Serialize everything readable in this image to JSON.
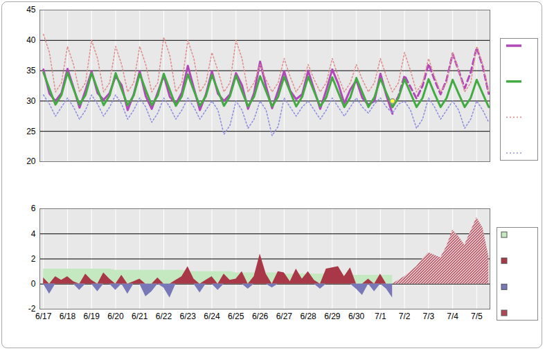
{
  "chart_data": [
    {
      "type": "line",
      "x": [
        0,
        0.25,
        0.5,
        0.75,
        1,
        1.25,
        1.5,
        1.75,
        2,
        2.25,
        2.5,
        2.75,
        3,
        3.25,
        3.5,
        3.75,
        4,
        4.25,
        4.5,
        4.75,
        5,
        5.25,
        5.5,
        5.75,
        6,
        6.25,
        6.5,
        6.75,
        7,
        7.25,
        7.5,
        7.75,
        8,
        8.25,
        8.5,
        8.75,
        9,
        9.25,
        9.5,
        9.75,
        10,
        10.25,
        10.5,
        10.75,
        11,
        11.25,
        11.5,
        11.75,
        12,
        12.25,
        12.5,
        12.75,
        13,
        13.25,
        13.5,
        13.75,
        14,
        14.25,
        14.5,
        14.75,
        15,
        15.25,
        15.5,
        15.75,
        16,
        16.25,
        16.5,
        16.75,
        17,
        17.25,
        17.5,
        17.75,
        18,
        18.25,
        18.5
      ],
      "xlim": [
        -0.15,
        18.55
      ],
      "xticks": [
        0,
        1,
        2,
        3,
        4,
        5,
        6,
        7,
        8,
        9,
        10,
        11,
        12,
        13,
        14,
        15,
        16,
        17,
        18
      ],
      "ylim": [
        20,
        45
      ],
      "yticks": [
        20,
        25,
        30,
        35,
        40,
        45
      ],
      "grid": true,
      "legend": "right",
      "tick_labels": "y",
      "series": [
        {
          "color": "#b048b8",
          "line_style": "solid",
          "values": [
            35.2,
            31.2,
            30.0,
            31.3,
            35.3,
            32.2,
            28.9,
            31.8,
            34.9,
            31.3,
            30.2,
            31.3,
            34.1,
            32.6,
            28.5,
            31.1,
            34.9,
            30.8,
            28.7,
            31.4,
            34.2,
            30.7,
            29.5,
            31.4,
            35.8,
            32.1,
            28.5,
            31.1,
            34.9,
            31.2,
            30.0,
            31.1,
            34.6,
            32.6,
            28.7,
            31.3,
            36.5,
            32.4,
            28.8,
            31.7,
            34.9,
            31.7,
            30.3,
            31.1,
            35.0,
            31.8,
            28.7,
            31.8,
            35.2,
            32.8,
            29.6,
            31.9,
            33.4,
            30.5,
            29.4,
            30.0,
            34.5,
            30.9,
            27.9,
            null,
            null,
            null,
            null,
            null,
            null,
            null,
            null,
            null,
            null,
            null,
            null,
            null,
            null,
            null,
            null
          ]
        },
        {
          "color": "#b048b8",
          "line_style": "dashed",
          "values": [
            null,
            null,
            null,
            null,
            null,
            null,
            null,
            null,
            null,
            null,
            null,
            null,
            null,
            null,
            null,
            null,
            null,
            null,
            null,
            null,
            null,
            null,
            null,
            null,
            null,
            null,
            null,
            null,
            null,
            null,
            null,
            null,
            null,
            null,
            null,
            null,
            null,
            null,
            null,
            null,
            null,
            null,
            null,
            null,
            null,
            null,
            null,
            null,
            null,
            null,
            null,
            null,
            null,
            null,
            null,
            null,
            null,
            null,
            29.0,
            30.8,
            34.2,
            32.3,
            30.4,
            32.5,
            36.1,
            33.5,
            31.1,
            33.5,
            37.8,
            35.0,
            32.1,
            34.7,
            38.8,
            35.7,
            31.2
          ]
        },
        {
          "color": "#44aa44",
          "line_style": "solid",
          "values": [
            34.7,
            32.0,
            29.4,
            31.0,
            34.7,
            32.0,
            29.4,
            31.0,
            34.6,
            31.9,
            29.3,
            30.9,
            34.6,
            31.9,
            29.3,
            30.9,
            34.5,
            31.8,
            29.3,
            30.9,
            34.5,
            31.8,
            29.2,
            30.8,
            34.4,
            31.7,
            29.2,
            30.8,
            34.3,
            31.7,
            29.2,
            30.8,
            34.2,
            31.6,
            29.1,
            30.7,
            34.1,
            31.6,
            29.1,
            30.7,
            34.0,
            31.5,
            29.1,
            30.7,
            34.0,
            31.5,
            29.1,
            30.6,
            33.9,
            31.4,
            29.0,
            30.6,
            33.8,
            31.4,
            29.0,
            30.6,
            33.7,
            31.3,
            29.0,
            30.5,
            33.6,
            31.3,
            29.0,
            30.5,
            33.6,
            31.2,
            29.0,
            30.5,
            33.5,
            31.2,
            29.0,
            30.5,
            33.5,
            31.2,
            29.0
          ]
        },
        {
          "color": "#e09090",
          "line_style": "dotted",
          "values": [
            41,
            38,
            31.5,
            33,
            39,
            36,
            31.5,
            33,
            40,
            37,
            31.5,
            33,
            39,
            36,
            31.5,
            33,
            39,
            36,
            31.5,
            33,
            40.5,
            37.5,
            31.5,
            33,
            40,
            37,
            31.5,
            33,
            38,
            35,
            31.5,
            33,
            40,
            37,
            31.5,
            33,
            36,
            33.5,
            31.5,
            33,
            37,
            34,
            31.5,
            33,
            36,
            33.5,
            31.5,
            33,
            37,
            34,
            31.5,
            33,
            36,
            33.5,
            31.5,
            33,
            37,
            34,
            31.5,
            33,
            38,
            35,
            31.5,
            33,
            37,
            34,
            31.5,
            33,
            38,
            35,
            31.5,
            33,
            39,
            36,
            31.5
          ]
        },
        {
          "color": "#9090e0",
          "line_style": "dotted",
          "values": [
            31,
            29.5,
            27.5,
            29,
            30.5,
            29,
            27,
            28.5,
            31,
            29.5,
            27.5,
            29,
            31,
            29.5,
            27,
            28.5,
            30.5,
            29,
            26.5,
            28,
            30.5,
            29,
            27,
            28.5,
            30.5,
            29,
            27,
            28.5,
            30,
            28.5,
            24.5,
            26,
            30,
            28.5,
            25.5,
            27,
            30,
            28.5,
            24.3,
            25.8,
            30.5,
            29,
            27.5,
            29,
            30,
            28.5,
            27,
            28.5,
            30.5,
            29,
            27.5,
            29,
            30.5,
            29,
            28,
            29.5,
            30.5,
            29,
            28,
            29.5,
            30,
            28.5,
            25.5,
            27,
            30.5,
            29,
            27,
            28.5,
            30,
            28.5,
            25.5,
            27,
            30,
            28.5,
            26.5
          ]
        },
        {
          "type": "scatter",
          "marker": "circle",
          "color": "#ffff33",
          "values": [
            null,
            null,
            null,
            null,
            null,
            null,
            null,
            null,
            null,
            null,
            null,
            null,
            null,
            null,
            null,
            null,
            null,
            null,
            null,
            null,
            null,
            null,
            null,
            null,
            null,
            null,
            null,
            null,
            null,
            null,
            null,
            null,
            null,
            null,
            null,
            null,
            null,
            null,
            null,
            null,
            null,
            null,
            null,
            null,
            null,
            null,
            null,
            null,
            null,
            null,
            null,
            null,
            null,
            null,
            null,
            null,
            null,
            null,
            30,
            null,
            null,
            null,
            null,
            null,
            null,
            null,
            null,
            null,
            null,
            null,
            null,
            null,
            null,
            null,
            null
          ]
        }
      ]
    },
    {
      "type": "area",
      "x": [
        0,
        0.25,
        0.5,
        0.75,
        1,
        1.25,
        1.5,
        1.75,
        2,
        2.25,
        2.5,
        2.75,
        3,
        3.25,
        3.5,
        3.75,
        4,
        4.25,
        4.5,
        4.75,
        5,
        5.25,
        5.5,
        5.75,
        6,
        6.25,
        6.5,
        6.75,
        7,
        7.25,
        7.5,
        7.75,
        8,
        8.25,
        8.5,
        8.75,
        9,
        9.25,
        9.5,
        9.75,
        10,
        10.25,
        10.5,
        10.75,
        11,
        11.25,
        11.5,
        11.75,
        12,
        12.25,
        12.5,
        12.75,
        13,
        13.25,
        13.5,
        13.75,
        14,
        14.25,
        14.5,
        14.75,
        15,
        15.25,
        15.5,
        15.75,
        16,
        16.25,
        16.5,
        16.75,
        17,
        17.25,
        17.5,
        17.75,
        18,
        18.25,
        18.5
      ],
      "xlim": [
        -0.15,
        18.55
      ],
      "xticks": [
        {
          "value": 0,
          "label": "6/17"
        },
        {
          "value": 1,
          "label": "6/18"
        },
        {
          "value": 2,
          "label": "6/19"
        },
        {
          "value": 3,
          "label": "6/20"
        },
        {
          "value": 4,
          "label": "6/21"
        },
        {
          "value": 5,
          "label": "6/22"
        },
        {
          "value": 6,
          "label": "6/23"
        },
        {
          "value": 7,
          "label": "6/24"
        },
        {
          "value": 8,
          "label": "6/25"
        },
        {
          "value": 9,
          "label": "6/26"
        },
        {
          "value": 10,
          "label": "6/27"
        },
        {
          "value": 11,
          "label": "6/28"
        },
        {
          "value": 12,
          "label": "6/29"
        },
        {
          "value": 13,
          "label": "6/30"
        },
        {
          "value": 14,
          "label": "7/1"
        },
        {
          "value": 15,
          "label": "7/2"
        },
        {
          "value": 16,
          "label": "7/3"
        },
        {
          "value": 17,
          "label": "7/4"
        },
        {
          "value": 18,
          "label": "7/5"
        }
      ],
      "ylim": [
        -2,
        6
      ],
      "yticks": [
        -2,
        0,
        2,
        4,
        6
      ],
      "grid": true,
      "legend": "right",
      "series": [
        {
          "color": "#c4e8c0",
          "values": [
            1.2,
            1.2,
            1.2,
            1.2,
            1.2,
            1.2,
            1.2,
            1.2,
            1.2,
            1.2,
            1.2,
            1.2,
            1.1,
            1.1,
            1.1,
            1.1,
            1.1,
            1.1,
            1.1,
            1.1,
            1.1,
            1.1,
            1.1,
            1.1,
            1.0,
            1.0,
            1.0,
            1.0,
            1.0,
            1.0,
            1.0,
            1.0,
            0.9,
            0.9,
            0.9,
            0.9,
            0.9,
            0.9,
            0.9,
            0.9,
            0.8,
            0.8,
            0.8,
            0.8,
            0.8,
            0.8,
            0.8,
            0.8,
            0.7,
            0.7,
            0.7,
            0.7,
            0.7,
            0.7,
            0.7,
            0.7,
            0.7,
            0.7,
            0.7,
            null,
            null,
            null,
            null,
            null,
            null,
            null,
            null,
            null,
            null,
            null,
            null,
            null,
            null,
            null,
            null
          ]
        },
        {
          "color": "#a83848",
          "values": [
            0.5,
            0,
            0.6,
            0.3,
            0.6,
            0.2,
            0,
            0.8,
            0.3,
            0,
            0.9,
            0.4,
            0,
            0.7,
            0,
            0.2,
            0.4,
            0,
            0,
            0.5,
            0,
            0,
            0.3,
            0.6,
            1.4,
            0.4,
            0,
            0.3,
            0.6,
            0,
            0.8,
            0.3,
            0.4,
            1.0,
            0,
            0.6,
            2.4,
            0.8,
            0,
            1.0,
            0.9,
            0.2,
            1.2,
            0.4,
            1.0,
            0.3,
            0,
            1.2,
            1.3,
            1.4,
            0.6,
            1.3,
            0,
            0,
            0.4,
            0,
            0.8,
            0,
            0,
            null,
            null,
            null,
            null,
            null,
            null,
            null,
            null,
            null,
            null,
            null,
            null,
            null,
            null,
            null,
            null
          ]
        },
        {
          "color": "#7878b8",
          "values": [
            0,
            -0.8,
            0,
            0,
            0,
            0,
            -0.5,
            0,
            0,
            -0.6,
            0,
            0,
            -0.5,
            0,
            -0.8,
            0,
            0,
            -1.0,
            -0.6,
            0,
            -0.3,
            -1.1,
            0,
            0,
            0,
            0,
            -0.7,
            0,
            0,
            -0.5,
            0,
            0,
            0,
            0,
            -0.4,
            0,
            0,
            0,
            -0.3,
            0,
            0,
            0,
            0,
            0,
            0,
            0,
            -0.4,
            0,
            0,
            0,
            0,
            0,
            -0.4,
            -0.9,
            0,
            -0.6,
            0,
            -0.4,
            -1.1,
            null,
            null,
            null,
            null,
            null,
            null,
            null,
            null,
            null,
            null,
            null,
            null,
            null,
            null,
            null,
            null
          ]
        },
        {
          "color": "#b04858",
          "line_style": "hatched",
          "values": [
            null,
            null,
            null,
            null,
            null,
            null,
            null,
            null,
            null,
            null,
            null,
            null,
            null,
            null,
            null,
            null,
            null,
            null,
            null,
            null,
            null,
            null,
            null,
            null,
            null,
            null,
            null,
            null,
            null,
            null,
            null,
            null,
            null,
            null,
            null,
            null,
            null,
            null,
            null,
            null,
            null,
            null,
            null,
            null,
            null,
            null,
            null,
            null,
            null,
            null,
            null,
            null,
            null,
            null,
            null,
            null,
            null,
            null,
            0,
            0.3,
            0.6,
            1.0,
            1.4,
            2.0,
            2.5,
            2.3,
            2.1,
            3.0,
            4.3,
            3.8,
            3.1,
            4.2,
            5.3,
            4.5,
            2.2
          ]
        }
      ]
    }
  ]
}
